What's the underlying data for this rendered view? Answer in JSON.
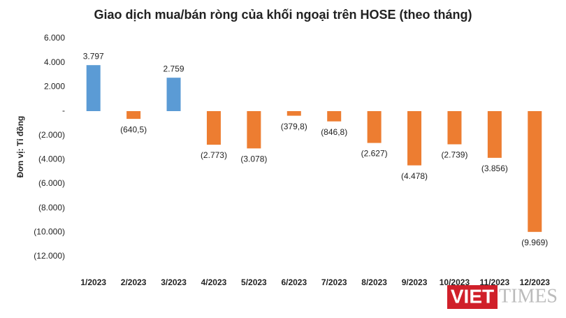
{
  "chart_data": {
    "type": "bar",
    "title": "Giao dịch mua/bán ròng của khối ngoại trên HOSE (theo tháng)",
    "y_axis_label": "Đơn vị: Tỉ đồng",
    "categories": [
      "1/2023",
      "2/2023",
      "3/2023",
      "4/2023",
      "5/2023",
      "6/2023",
      "7/2023",
      "8/2023",
      "9/2023",
      "10/2023",
      "11/2023",
      "12/2023"
    ],
    "values": [
      3797,
      -640.5,
      2759,
      -2773,
      -3078,
      -379.8,
      -846.8,
      -2627,
      -4478,
      -2739,
      -3856,
      -9969
    ],
    "value_labels": [
      "3.797",
      "(640,5)",
      "2.759",
      "(2.773)",
      "(3.078)",
      "(379,8)",
      "(846,8)",
      "(2.627)",
      "(4.478)",
      "(2.739)",
      "(3.856)",
      "(9.969)"
    ],
    "positive_color": "#5b9bd5",
    "negative_color": "#ed7d31",
    "ylim": [
      -12000,
      6000
    ],
    "yticks": [
      {
        "value": 6000,
        "label": "6.000"
      },
      {
        "value": 4000,
        "label": "4.000"
      },
      {
        "value": 2000,
        "label": "2.000"
      },
      {
        "value": 0,
        "label": "-"
      },
      {
        "value": -2000,
        "label": "(2.000)"
      },
      {
        "value": -4000,
        "label": "(4.000)"
      },
      {
        "value": -6000,
        "label": "(6.000)"
      },
      {
        "value": -8000,
        "label": "(8.000)"
      },
      {
        "value": -10000,
        "label": "(10.000)"
      },
      {
        "value": -12000,
        "label": "(12.000)"
      }
    ],
    "grid": false,
    "watermark": [
      "VIET",
      "TIMES"
    ]
  }
}
